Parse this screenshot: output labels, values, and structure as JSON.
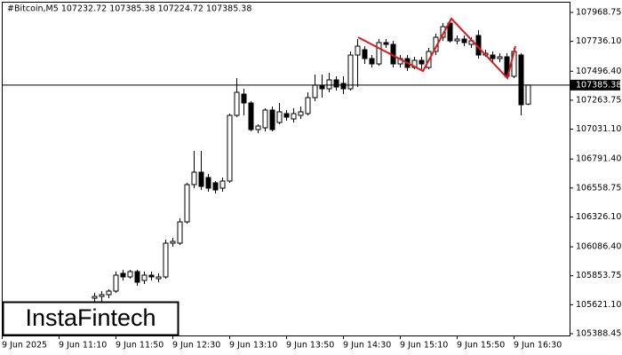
{
  "chart_data": {
    "type": "candlestick",
    "title": "#Bitcoin,M5  107232.72 107385.38 107224.72 107385.38",
    "watermark": "InstaFintech",
    "categories": [
      "9 Jun 2025",
      null,
      null,
      null,
      null,
      null,
      null,
      null,
      "9 Jun 11:10",
      null,
      null,
      null,
      null,
      null,
      null,
      null,
      "9 Jun 11:50",
      null,
      null,
      null,
      null,
      null,
      null,
      null,
      "9 Jun 12:30",
      null,
      null,
      null,
      null,
      null,
      null,
      null,
      "9 Jun 13:10",
      null,
      null,
      null,
      null,
      null,
      null,
      null,
      "9 Jun 13:50",
      null,
      null,
      null,
      null,
      null,
      null,
      null,
      "9 Jun 14:30",
      null,
      null,
      null,
      null,
      null,
      null,
      null,
      "9 Jun 15:10",
      null,
      null,
      null,
      null,
      null,
      null,
      null,
      "9 Jun 15:50",
      null,
      null,
      null,
      null,
      null,
      null,
      null,
      "9 Jun 16:30",
      null,
      null
    ],
    "open": [
      null,
      null,
      null,
      null,
      null,
      null,
      null,
      null,
      null,
      null,
      null,
      null,
      null,
      105673.5,
      105687.7,
      105702.0,
      105730.5,
      105873.1,
      105844.6,
      105887.3,
      105816.1,
      105858.8,
      105830.3,
      105844.6,
      106115.4,
      106115.4,
      106286.5,
      106585.9,
      106685.7,
      106642.9,
      106600.1,
      106557.4,
      106614.4,
      107141.9,
      107312.9,
      107241.7,
      107027.8,
      107042.1,
      107184.6,
      107084.8,
      107156.1,
      107113.3,
      107141.9,
      107156.1,
      107284.4,
      107384.2,
      107355.7,
      107427.0,
      107398.5,
      107355.7,
      107626.6,
      107669.3,
      107598.1,
      107555.3,
      107726.4,
      107712.1,
      107555.3,
      107598.1,
      107526.8,
      107583.8,
      107526.8,
      107655.1,
      107769.1,
      107883.2,
      107740.6,
      107754.9,
      107712.1,
      107783.4,
      107626.6,
      107626.6,
      107598.1,
      107612.3,
      107455.5,
      107626.6,
      107232.72
    ],
    "high": [
      null,
      null,
      null,
      null,
      null,
      null,
      null,
      null,
      null,
      null,
      null,
      null,
      null,
      105716.3,
      105730.5,
      105744.8,
      105887.3,
      105901.6,
      105901.6,
      105901.6,
      105887.3,
      105887.3,
      105873.1,
      106143.9,
      106158.2,
      106315.0,
      106600.1,
      106856.7,
      106856.7,
      106671.4,
      106614.4,
      106642.9,
      107156.1,
      107441.2,
      107355.7,
      107255.9,
      107070.6,
      107198.9,
      107213.1,
      107241.7,
      107184.6,
      107198.9,
      107213.1,
      107327.2,
      107469.8,
      107469.8,
      107484.0,
      107455.5,
      107455.5,
      107655.1,
      107754.9,
      107697.8,
      107626.6,
      107754.9,
      107754.9,
      107740.6,
      107626.6,
      107626.6,
      107612.3,
      107612.3,
      107683.6,
      107797.7,
      107883.2,
      107911.7,
      107783.4,
      107783.4,
      107769.1,
      107826.2,
      107669.3,
      107655.1,
      107640.8,
      107640.8,
      107683.6,
      107640.8,
      107385.38
    ],
    "low": [
      null,
      null,
      null,
      null,
      null,
      null,
      null,
      null,
      null,
      null,
      null,
      null,
      null,
      105630.7,
      105645.0,
      105673.5,
      105716.3,
      105816.1,
      105830.3,
      105773.3,
      105787.5,
      105816.1,
      105801.8,
      105830.3,
      106086.9,
      106101.2,
      106272.2,
      106557.4,
      106543.1,
      106528.9,
      106514.6,
      106528.9,
      106600.1,
      107127.6,
      107141.9,
      107013.6,
      106999.3,
      107013.6,
      107013.6,
      107070.6,
      107099.1,
      107084.8,
      107113.3,
      107141.9,
      107255.9,
      107284.4,
      107327.2,
      107341.4,
      107312.9,
      107341.4,
      107370.0,
      107555.3,
      107526.8,
      107541.0,
      107683.6,
      107526.8,
      107526.8,
      107498.3,
      107512.5,
      107512.5,
      107512.5,
      107626.6,
      107740.6,
      107726.4,
      107712.1,
      107697.8,
      107683.6,
      107598.1,
      107612.3,
      107569.5,
      107569.5,
      107441.2,
      107441.2,
      107141.9,
      107224.72
    ],
    "close": [
      null,
      null,
      null,
      null,
      null,
      null,
      null,
      null,
      null,
      null,
      null,
      null,
      null,
      105687.7,
      105702.0,
      105730.5,
      105858.8,
      105844.6,
      105887.3,
      105801.8,
      105858.8,
      105844.6,
      105844.6,
      106115.4,
      106129.7,
      106286.5,
      106585.9,
      106685.7,
      106571.6,
      106557.4,
      106543.1,
      106614.4,
      107141.9,
      107327.2,
      107241.7,
      107027.8,
      107056.3,
      107184.6,
      107027.8,
      107170.4,
      107127.6,
      107156.1,
      107170.4,
      107284.4,
      107384.2,
      107355.7,
      107427.0,
      107370.0,
      107355.7,
      107626.6,
      107697.8,
      107598.1,
      107555.3,
      107726.4,
      107712.1,
      107555.3,
      107598.1,
      107526.8,
      107583.8,
      107555.3,
      107655.1,
      107769.1,
      107854.7,
      107740.6,
      107754.9,
      107726.4,
      107740.6,
      107626.6,
      107640.8,
      107598.1,
      107612.3,
      107455.5,
      107655.1,
      107227.4,
      107385.38
    ],
    "up_color": "#ffffff",
    "down_color": "#000000",
    "last_price": 107385.38,
    "ylim": [
      105374.2,
      108054.3
    ],
    "yticks": [
      107968.75,
      {
        "value": 107736.1,
        "label": "107736.10"
      },
      {
        "value": 107496.4,
        "label": "107496.40"
      },
      107263.75,
      {
        "value": 107031.1,
        "label": "107031.10"
      },
      {
        "value": 106791.4,
        "label": "106791.40"
      },
      106558.75,
      {
        "value": 106326.1,
        "label": "106326.10"
      },
      {
        "value": 106086.4,
        "label": "106086.40"
      },
      105853.75,
      {
        "value": 105621.1,
        "label": "105621.10"
      },
      105388.45
    ]
  }
}
